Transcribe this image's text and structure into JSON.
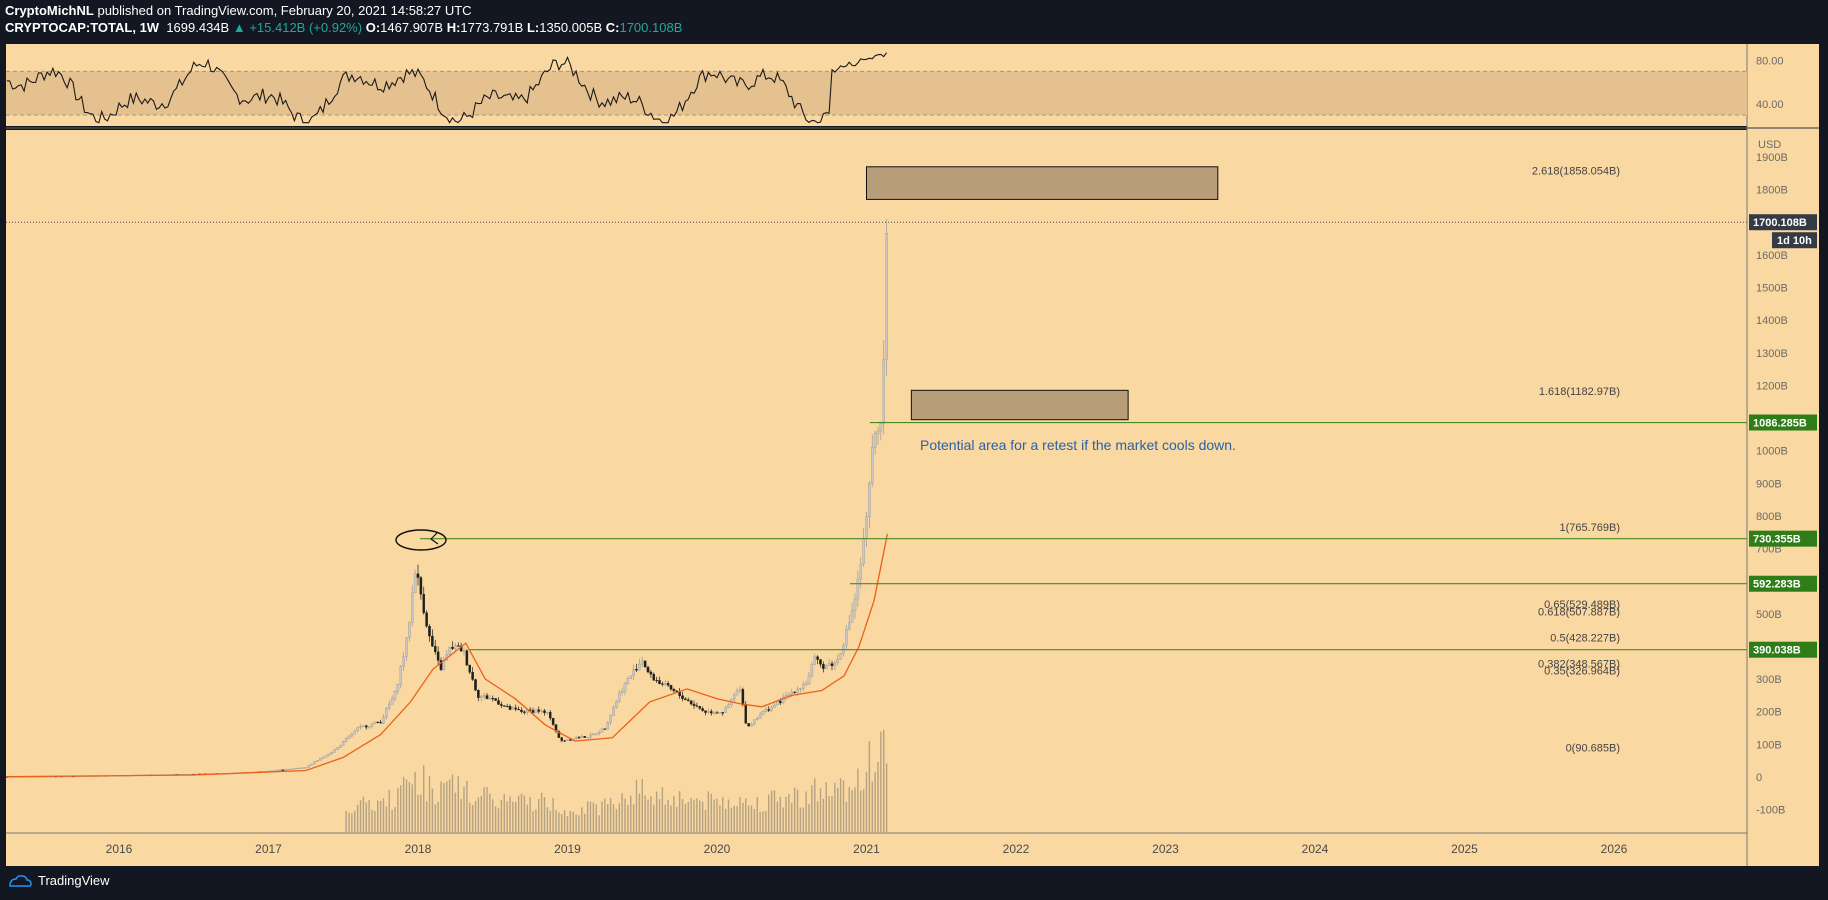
{
  "header": {
    "author": "CryptoMichNL",
    "published_text": "published on TradingView.com, February 20, 2021 14:58:27 UTC",
    "symbol": "CRYPTOCAP:TOTAL, 1W",
    "price": "1699.434B",
    "change": "▲ +15.412B (+0.92%)",
    "o_label": "O:",
    "o_value": "1467.907B",
    "h_label": "H:",
    "h_value": "1773.791B",
    "l_label": "L:",
    "l_value": "1350.005B",
    "c_label": "C:",
    "c_value": "1700.108B"
  },
  "footer": {
    "brand": "TradingView"
  },
  "colors": {
    "background": "#fad8a1",
    "green_line": "#4a8a1e",
    "orange_ma": "#e8621a",
    "candle_up": "#c8c8c8",
    "candle_down": "#1f1f1f",
    "zone_fill": "#b89d79",
    "annotation": "#2962a5",
    "dark_tag": "#363a45",
    "green_tag": "#2e7d18"
  },
  "chart_data": {
    "type": "candlestick",
    "symbol": "CRYPTOCAP:TOTAL",
    "interval": "1W",
    "currency": "USD",
    "y_ticks": [
      "1900B",
      "1800B",
      "1700B",
      "1600B",
      "1500B",
      "1400B",
      "1300B",
      "1200B",
      "1100B",
      "1000B",
      "900B",
      "800B",
      "700B",
      "600B",
      "500B",
      "400B",
      "300B",
      "200B",
      "100B",
      "0",
      "-100B"
    ],
    "ylim": [
      -160,
      1950
    ],
    "x_ticks": [
      "2016",
      "2017",
      "2018",
      "2019",
      "2020",
      "2021",
      "2022",
      "2023",
      "2024",
      "2025",
      "2026"
    ],
    "rsi": {
      "ticks": [
        "80.00",
        "40.00"
      ],
      "band": [
        30,
        70
      ],
      "ylim": [
        20,
        95
      ]
    },
    "close_series": [
      [
        "2015.25",
        1
      ],
      [
        "2015.75",
        3
      ],
      [
        "2016.25",
        7
      ],
      [
        "2016.5",
        9
      ],
      [
        "2016.75",
        12
      ],
      [
        "2017.0",
        18
      ],
      [
        "2017.25",
        30
      ],
      [
        "2017.45",
        85
      ],
      [
        "2017.6",
        150
      ],
      [
        "2017.75",
        170
      ],
      [
        "2017.85",
        260
      ],
      [
        "2017.93",
        430
      ],
      [
        "2017.98",
        640
      ],
      [
        "2018.02",
        560
      ],
      [
        "2018.08",
        420
      ],
      [
        "2018.15",
        330
      ],
      [
        "2018.22",
        400
      ],
      [
        "2018.3",
        390
      ],
      [
        "2018.4",
        250
      ],
      [
        "2018.5",
        240
      ],
      [
        "2018.6",
        210
      ],
      [
        "2018.7",
        200
      ],
      [
        "2018.8",
        205
      ],
      [
        "2018.88",
        190
      ],
      [
        "2018.95",
        110
      ],
      [
        "2019.05",
        120
      ],
      [
        "2019.15",
        125
      ],
      [
        "2019.25",
        150
      ],
      [
        "2019.35",
        260
      ],
      [
        "2019.45",
        330
      ],
      [
        "2019.5",
        360
      ],
      [
        "2019.55",
        310
      ],
      [
        "2019.65",
        280
      ],
      [
        "2019.75",
        250
      ],
      [
        "2019.85",
        220
      ],
      [
        "2019.92",
        200
      ],
      [
        "2020.05",
        200
      ],
      [
        "2020.15",
        275
      ],
      [
        "2020.2",
        150
      ],
      [
        "2020.28",
        190
      ],
      [
        "2020.4",
        225
      ],
      [
        "2020.5",
        260
      ],
      [
        "2020.6",
        290
      ],
      [
        "2020.65",
        360
      ],
      [
        "2020.7",
        340
      ],
      [
        "2020.8",
        350
      ],
      [
        "2020.87",
        450
      ],
      [
        "2020.93",
        560
      ],
      [
        "2020.97",
        680
      ],
      [
        "2021.0",
        780
      ],
      [
        "2021.04",
        1000
      ],
      [
        "2021.07",
        1100
      ],
      [
        "2021.1",
        1050
      ],
      [
        "2021.12",
        1400
      ],
      [
        "2021.14",
        1700.108
      ]
    ],
    "ma_series": [
      [
        "2015.25",
        1
      ],
      [
        "2016.5",
        6
      ],
      [
        "2017.25",
        20
      ],
      [
        "2017.5",
        60
      ],
      [
        "2017.75",
        130
      ],
      [
        "2017.95",
        230
      ],
      [
        "2018.1",
        330
      ],
      [
        "2018.32",
        410
      ],
      [
        "2018.45",
        300
      ],
      [
        "2018.65",
        240
      ],
      [
        "2018.85",
        160
      ],
      [
        "2019.05",
        110
      ],
      [
        "2019.3",
        120
      ],
      [
        "2019.55",
        230
      ],
      [
        "2019.8",
        270
      ],
      [
        "2020.0",
        240
      ],
      [
        "2020.15",
        225
      ],
      [
        "2020.3",
        215
      ],
      [
        "2020.5",
        250
      ],
      [
        "2020.7",
        265
      ],
      [
        "2020.85",
        310
      ],
      [
        "2020.95",
        400
      ],
      [
        "2021.05",
        540
      ],
      [
        "2021.14",
        745
      ]
    ],
    "price_levels": [
      {
        "label": "1700.108B",
        "value": 1700.108,
        "kind": "last"
      },
      {
        "label": "1086.285B",
        "value": 1086.285,
        "kind": "support"
      },
      {
        "label": "730.355B",
        "value": 730.355,
        "kind": "support"
      },
      {
        "label": "592.283B",
        "value": 592.283,
        "kind": "support"
      },
      {
        "label": "390.038B",
        "value": 390.038,
        "kind": "support"
      }
    ],
    "countdown": "1d 10h",
    "fib_levels": [
      {
        "label": "2.618(1858.054B)",
        "value": 1858.054
      },
      {
        "label": "1.618(1182.97B)",
        "value": 1182.97
      },
      {
        "label": "1(765.769B)",
        "value": 765.769
      },
      {
        "label": "0.65(529.489B)",
        "value": 529.489
      },
      {
        "label": "0.618(507.887B)",
        "value": 507.887
      },
      {
        "label": "0.5(428.227B)",
        "value": 428.227
      },
      {
        "label": "0.382(348.567B)",
        "value": 348.567
      },
      {
        "label": "0.35(326.964B)",
        "value": 326.964
      },
      {
        "label": "0(90.685B)",
        "value": 90.685
      }
    ],
    "zones": [
      {
        "x_from": "2021.0",
        "x_to": "2023.35",
        "y_from": 1770,
        "y_to": 1870
      },
      {
        "x_from": "2021.3",
        "x_to": "2022.75",
        "y_from": 1095,
        "y_to": 1185
      }
    ],
    "annotation": "Potential area for a retest if the market cools down."
  }
}
